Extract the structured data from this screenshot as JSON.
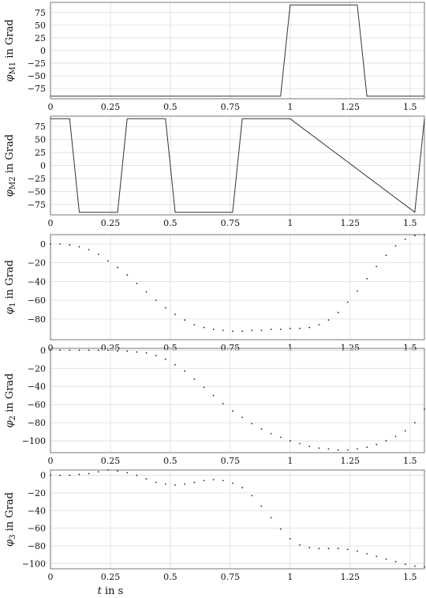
{
  "chart_data": [
    {
      "type": "line",
      "ylabel_sym": "φ",
      "ylabel_sub": "M1",
      "ylabel_unit": "in Grad",
      "xlabel_pre": "",
      "xlabel_post": "",
      "xlim": [
        0,
        1.56
      ],
      "ylim": [
        -95,
        95
      ],
      "xticks": [
        0,
        0.25,
        0.5,
        0.75,
        1,
        1.25,
        1.5
      ],
      "xtick_labels": [
        "0",
        "0.25",
        "0.5",
        "0.75",
        "1",
        "1.25",
        "1.5"
      ],
      "yticks": [
        75,
        50,
        25,
        0,
        -25,
        -50,
        -75
      ],
      "ytick_labels": [
        "75",
        "50",
        "25",
        "0",
        "−25",
        "−50",
        "−75"
      ],
      "grid": true,
      "series": [
        {
          "x": [
            0,
            0.96,
            1.0,
            1.28,
            1.32,
            1.56
          ],
          "y": [
            -90,
            -90,
            90,
            90,
            -90,
            -90
          ]
        }
      ]
    },
    {
      "type": "line",
      "ylabel_sym": "φ",
      "ylabel_sub": "M2",
      "ylabel_unit": "in Grad",
      "xlabel_pre": "",
      "xlabel_post": "",
      "xlim": [
        0,
        1.56
      ],
      "ylim": [
        -95,
        95
      ],
      "xticks": [
        0,
        0.25,
        0.5,
        0.75,
        1,
        1.25,
        1.5
      ],
      "xtick_labels": [
        "0",
        "0.25",
        "0.5",
        "0.75",
        "1",
        "1.25",
        "1.5"
      ],
      "yticks": [
        75,
        50,
        25,
        0,
        -25,
        -50,
        -75
      ],
      "ytick_labels": [
        "75",
        "50",
        "25",
        "0",
        "−25",
        "−50",
        "−75"
      ],
      "grid": true,
      "series": [
        {
          "x": [
            0,
            0.08,
            0.12,
            0.28,
            0.32,
            0.48,
            0.52,
            0.76,
            0.8,
            1.0,
            1.52,
            1.56
          ],
          "y": [
            90,
            90,
            -90,
            -90,
            90,
            90,
            -90,
            -90,
            90,
            90,
            -90,
            90
          ]
        }
      ]
    },
    {
      "type": "scatter",
      "ylabel_sym": "φ",
      "ylabel_sub": "1",
      "ylabel_unit": "in Grad",
      "xlabel_pre": "",
      "xlabel_post": "",
      "xlim": [
        0,
        1.56
      ],
      "ylim": [
        -102,
        10
      ],
      "xticks": [
        0,
        0.25,
        0.5,
        0.75,
        1,
        1.25,
        1.5
      ],
      "xtick_labels": [
        "0",
        "0.25",
        "0.5",
        "0.75",
        "1",
        "1.25",
        "1.5"
      ],
      "yticks": [
        0,
        -20,
        -40,
        -60,
        -80
      ],
      "ytick_labels": [
        "0",
        "−20",
        "−40",
        "−60",
        "−80"
      ],
      "grid": true,
      "series": [
        {
          "x": [
            0,
            0.04,
            0.08,
            0.12,
            0.16,
            0.2,
            0.24,
            0.28,
            0.32,
            0.36,
            0.4,
            0.44,
            0.48,
            0.52,
            0.56,
            0.6,
            0.64,
            0.68,
            0.72,
            0.76,
            0.8,
            0.84,
            0.88,
            0.92,
            0.96,
            1.0,
            1.04,
            1.08,
            1.12,
            1.16,
            1.2,
            1.24,
            1.28,
            1.32,
            1.36,
            1.4,
            1.44,
            1.48,
            1.52,
            1.56
          ],
          "y": [
            0,
            0,
            -1,
            -3,
            -6,
            -11,
            -18,
            -25,
            -33,
            -42,
            -51,
            -60,
            -68,
            -75,
            -81,
            -86,
            -89,
            -91,
            -92,
            -93,
            -93,
            -92,
            -92,
            -91,
            -91,
            -90,
            -90,
            -89,
            -86,
            -81,
            -73,
            -62,
            -50,
            -37,
            -24,
            -12,
            -2,
            5,
            9,
            10
          ]
        }
      ]
    },
    {
      "type": "scatter",
      "ylabel_sym": "φ",
      "ylabel_sub": "2",
      "ylabel_unit": "in Grad",
      "xlabel_pre": "",
      "xlabel_post": "",
      "xlim": [
        0,
        1.56
      ],
      "ylim": [
        -113,
        2
      ],
      "xticks": [
        0,
        0.25,
        0.5,
        0.75,
        1,
        1.25,
        1.5
      ],
      "xtick_labels": [
        "0",
        "0.25",
        "0.5",
        "0.75",
        "1",
        "1.25",
        "1.5"
      ],
      "yticks": [
        0,
        -20,
        -40,
        -60,
        -80,
        -100
      ],
      "ytick_labels": [
        "0",
        "−20",
        "−40",
        "−60",
        "−80",
        "−100"
      ],
      "grid": true,
      "series": [
        {
          "x": [
            0,
            0.04,
            0.08,
            0.12,
            0.16,
            0.2,
            0.24,
            0.28,
            0.32,
            0.36,
            0.4,
            0.44,
            0.48,
            0.52,
            0.56,
            0.6,
            0.64,
            0.68,
            0.72,
            0.76,
            0.8,
            0.84,
            0.88,
            0.92,
            0.96,
            1.0,
            1.04,
            1.08,
            1.12,
            1.16,
            1.2,
            1.24,
            1.28,
            1.32,
            1.36,
            1.4,
            1.44,
            1.48,
            1.52,
            1.56
          ],
          "y": [
            0,
            0,
            0,
            0,
            0,
            0,
            0,
            -1,
            -1,
            -2,
            -3,
            -6,
            -10,
            -16,
            -23,
            -32,
            -41,
            -50,
            -59,
            -67,
            -74,
            -81,
            -87,
            -92,
            -96,
            -100,
            -103,
            -106,
            -108,
            -109,
            -110,
            -110,
            -109,
            -107,
            -104,
            -100,
            -95,
            -89,
            -80,
            -65
          ]
        }
      ]
    },
    {
      "type": "scatter",
      "ylabel_sym": "φ",
      "ylabel_sub": "3",
      "ylabel_unit": "in Grad",
      "xlabel_pre": "t",
      "xlabel_post": " in s",
      "xlim": [
        0,
        1.56
      ],
      "ylim": [
        -106,
        6
      ],
      "xticks": [
        0,
        0.25,
        0.5,
        0.75,
        1,
        1.25,
        1.5
      ],
      "xtick_labels": [
        "0",
        "0.25",
        "0.5",
        "0.75",
        "1",
        "1.25",
        "1.5"
      ],
      "yticks": [
        0,
        -20,
        -40,
        -60,
        -80,
        -100
      ],
      "ytick_labels": [
        "0",
        "−20",
        "−40",
        "−60",
        "−80",
        "−100"
      ],
      "grid": true,
      "series": [
        {
          "x": [
            0,
            0.04,
            0.08,
            0.12,
            0.16,
            0.2,
            0.24,
            0.28,
            0.32,
            0.36,
            0.4,
            0.44,
            0.48,
            0.52,
            0.56,
            0.6,
            0.64,
            0.68,
            0.72,
            0.76,
            0.8,
            0.84,
            0.88,
            0.92,
            0.96,
            1.0,
            1.04,
            1.08,
            1.12,
            1.16,
            1.2,
            1.24,
            1.28,
            1.32,
            1.36,
            1.4,
            1.44,
            1.48,
            1.52,
            1.56
          ],
          "y": [
            0,
            0,
            0,
            1,
            2,
            4,
            6,
            5,
            3,
            0,
            -4,
            -8,
            -10,
            -11,
            -10,
            -8,
            -6,
            -5,
            -6,
            -9,
            -14,
            -23,
            -35,
            -48,
            -61,
            -72,
            -79,
            -82,
            -83,
            -83,
            -83,
            -84,
            -86,
            -89,
            -92,
            -95,
            -98,
            -101,
            -103,
            -104
          ]
        }
      ]
    }
  ]
}
